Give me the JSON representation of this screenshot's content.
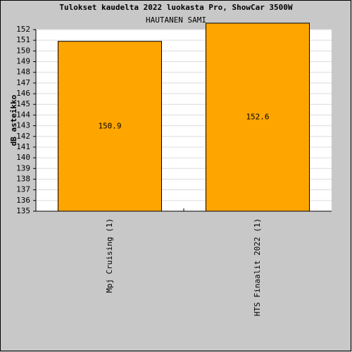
{
  "chart_data": {
    "type": "bar",
    "title": "Tulokset kaudelta 2022 luokasta Pro, ShowCar 3500W",
    "subtitle": "HAUTANEN SAMI",
    "y_label": "dB asteikko",
    "categories": [
      "Mpj Cruising (1)",
      "HTS Finaalit 2022 (1)"
    ],
    "values": [
      150.9,
      152.6
    ],
    "color": "#ffa500",
    "ylim": [
      135,
      152
    ],
    "yticks": [
      135,
      136,
      137,
      138,
      139,
      140,
      141,
      142,
      143,
      144,
      145,
      146,
      147,
      148,
      149,
      150,
      151,
      152
    ],
    "grid": true
  }
}
